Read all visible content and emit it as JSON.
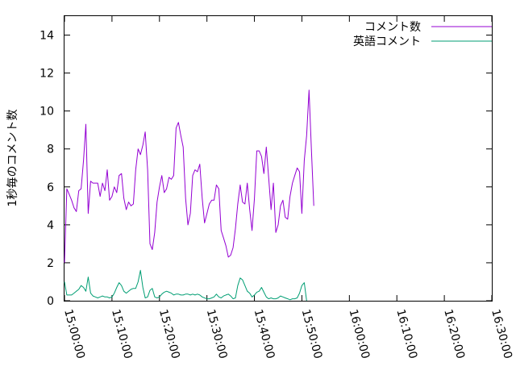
{
  "chart_data": {
    "type": "line",
    "ylabel": "1秒毎のコメント数",
    "ylim": [
      0,
      15
    ],
    "yticks": [
      0,
      2,
      4,
      6,
      8,
      10,
      12,
      14
    ],
    "xlim_minutes": [
      0,
      90
    ],
    "xticks": [
      {
        "m": 0,
        "label": "15:00:00"
      },
      {
        "m": 10,
        "label": "15:10:00"
      },
      {
        "m": 20,
        "label": "15:20:00"
      },
      {
        "m": 30,
        "label": "15:30:00"
      },
      {
        "m": 40,
        "label": "15:40:00"
      },
      {
        "m": 50,
        "label": "15:50:00"
      },
      {
        "m": 60,
        "label": "16:00:00"
      },
      {
        "m": 70,
        "label": "16:10:00"
      },
      {
        "m": 80,
        "label": "16:20:00"
      },
      {
        "m": 90,
        "label": "16:30:00"
      }
    ],
    "legend_position": "top-right",
    "series": [
      {
        "name": "コメント数",
        "color": "#9400d3",
        "points": [
          [
            0,
            2.0
          ],
          [
            0.5,
            5.9
          ],
          [
            1.0,
            5.6
          ],
          [
            1.5,
            5.3
          ],
          [
            2.0,
            4.9
          ],
          [
            2.5,
            4.7
          ],
          [
            3.0,
            5.8
          ],
          [
            3.5,
            5.9
          ],
          [
            4.0,
            7.4
          ],
          [
            4.5,
            9.3
          ],
          [
            5.0,
            4.6
          ],
          [
            5.5,
            6.3
          ],
          [
            6.0,
            6.2
          ],
          [
            6.5,
            6.2
          ],
          [
            7.0,
            6.2
          ],
          [
            7.5,
            5.5
          ],
          [
            8.0,
            6.2
          ],
          [
            8.5,
            5.8
          ],
          [
            9.0,
            6.9
          ],
          [
            9.5,
            5.3
          ],
          [
            10.0,
            5.5
          ],
          [
            10.5,
            6.0
          ],
          [
            11.0,
            5.7
          ],
          [
            11.5,
            6.6
          ],
          [
            12.0,
            6.7
          ],
          [
            12.5,
            5.4
          ],
          [
            13.0,
            4.8
          ],
          [
            13.5,
            5.2
          ],
          [
            14.0,
            5.0
          ],
          [
            14.5,
            5.1
          ],
          [
            15.0,
            6.9
          ],
          [
            15.5,
            8.0
          ],
          [
            16.0,
            7.7
          ],
          [
            16.5,
            8.2
          ],
          [
            17.0,
            8.9
          ],
          [
            17.5,
            6.9
          ],
          [
            18.0,
            3.0
          ],
          [
            18.5,
            2.7
          ],
          [
            19.0,
            3.6
          ],
          [
            19.5,
            5.2
          ],
          [
            20.0,
            6.0
          ],
          [
            20.5,
            6.6
          ],
          [
            21.0,
            5.7
          ],
          [
            21.5,
            5.9
          ],
          [
            22.0,
            6.5
          ],
          [
            22.5,
            6.4
          ],
          [
            23.0,
            6.6
          ],
          [
            23.5,
            9.1
          ],
          [
            24.0,
            9.4
          ],
          [
            24.5,
            8.7
          ],
          [
            25.0,
            8.1
          ],
          [
            25.5,
            5.4
          ],
          [
            26.0,
            4.0
          ],
          [
            26.5,
            4.6
          ],
          [
            27.0,
            6.6
          ],
          [
            27.5,
            6.9
          ],
          [
            28.0,
            6.8
          ],
          [
            28.5,
            7.2
          ],
          [
            29.0,
            5.4
          ],
          [
            29.5,
            4.1
          ],
          [
            30.0,
            4.6
          ],
          [
            30.5,
            5.1
          ],
          [
            31.0,
            5.3
          ],
          [
            31.5,
            5.3
          ],
          [
            32.0,
            6.1
          ],
          [
            32.5,
            5.9
          ],
          [
            33.0,
            3.7
          ],
          [
            33.5,
            3.3
          ],
          [
            34.0,
            2.9
          ],
          [
            34.5,
            2.3
          ],
          [
            35.0,
            2.4
          ],
          [
            35.5,
            2.8
          ],
          [
            36.0,
            3.8
          ],
          [
            36.5,
            5.1
          ],
          [
            37.0,
            6.1
          ],
          [
            37.5,
            5.2
          ],
          [
            38.0,
            5.1
          ],
          [
            38.5,
            6.2
          ],
          [
            39.0,
            4.8
          ],
          [
            39.5,
            3.7
          ],
          [
            40.0,
            5.4
          ],
          [
            40.5,
            7.9
          ],
          [
            41.0,
            7.9
          ],
          [
            41.5,
            7.6
          ],
          [
            42.0,
            6.7
          ],
          [
            42.5,
            8.1
          ],
          [
            43.0,
            6.5
          ],
          [
            43.5,
            4.8
          ],
          [
            44.0,
            6.2
          ],
          [
            44.5,
            3.6
          ],
          [
            45.0,
            4.0
          ],
          [
            45.5,
            5.0
          ],
          [
            46.0,
            5.3
          ],
          [
            46.5,
            4.4
          ],
          [
            47.0,
            4.3
          ],
          [
            47.5,
            5.5
          ],
          [
            48.0,
            6.2
          ],
          [
            48.5,
            6.6
          ],
          [
            49.0,
            7.0
          ],
          [
            49.5,
            6.8
          ],
          [
            50.0,
            4.6
          ],
          [
            50.5,
            7.4
          ],
          [
            51.0,
            8.7
          ],
          [
            51.5,
            11.1
          ],
          [
            52.0,
            8.0
          ],
          [
            52.5,
            5.0
          ]
        ]
      },
      {
        "name": "英語コメント",
        "color": "#009e73",
        "points": [
          [
            0,
            1.0
          ],
          [
            0.5,
            0.3
          ],
          [
            1.0,
            0.3
          ],
          [
            1.5,
            0.3
          ],
          [
            2.0,
            0.4
          ],
          [
            2.5,
            0.5
          ],
          [
            3.0,
            0.6
          ],
          [
            3.5,
            0.8
          ],
          [
            4.0,
            0.7
          ],
          [
            4.5,
            0.5
          ],
          [
            5.0,
            1.25
          ],
          [
            5.5,
            0.4
          ],
          [
            6.0,
            0.25
          ],
          [
            6.5,
            0.2
          ],
          [
            7.0,
            0.15
          ],
          [
            7.5,
            0.2
          ],
          [
            8.0,
            0.25
          ],
          [
            8.5,
            0.2
          ],
          [
            9.0,
            0.2
          ],
          [
            9.5,
            0.15
          ],
          [
            10.0,
            0.2
          ],
          [
            10.5,
            0.4
          ],
          [
            11.0,
            0.7
          ],
          [
            11.5,
            0.95
          ],
          [
            12.0,
            0.8
          ],
          [
            12.5,
            0.5
          ],
          [
            13.0,
            0.4
          ],
          [
            13.5,
            0.5
          ],
          [
            14.0,
            0.6
          ],
          [
            14.5,
            0.65
          ],
          [
            15.0,
            0.65
          ],
          [
            15.5,
            1.0
          ],
          [
            16.0,
            1.6
          ],
          [
            16.5,
            0.7
          ],
          [
            17.0,
            0.15
          ],
          [
            17.5,
            0.2
          ],
          [
            18.0,
            0.55
          ],
          [
            18.5,
            0.65
          ],
          [
            19.0,
            0.2
          ],
          [
            19.5,
            0.15
          ],
          [
            20.0,
            0.2
          ],
          [
            20.5,
            0.35
          ],
          [
            21.0,
            0.45
          ],
          [
            21.5,
            0.5
          ],
          [
            22.0,
            0.45
          ],
          [
            22.5,
            0.4
          ],
          [
            23.0,
            0.3
          ],
          [
            23.5,
            0.35
          ],
          [
            24.0,
            0.35
          ],
          [
            24.5,
            0.3
          ],
          [
            25.0,
            0.3
          ],
          [
            25.5,
            0.35
          ],
          [
            26.0,
            0.35
          ],
          [
            26.5,
            0.3
          ],
          [
            27.0,
            0.35
          ],
          [
            27.5,
            0.3
          ],
          [
            28.0,
            0.35
          ],
          [
            28.5,
            0.3
          ],
          [
            29.0,
            0.2
          ],
          [
            29.5,
            0.15
          ],
          [
            30.0,
            0.1
          ],
          [
            30.5,
            0.1
          ],
          [
            31.0,
            0.15
          ],
          [
            31.5,
            0.2
          ],
          [
            32.0,
            0.35
          ],
          [
            32.5,
            0.2
          ],
          [
            33.0,
            0.15
          ],
          [
            33.5,
            0.25
          ],
          [
            34.0,
            0.3
          ],
          [
            34.5,
            0.35
          ],
          [
            35.0,
            0.25
          ],
          [
            35.5,
            0.1
          ],
          [
            36.0,
            0.15
          ],
          [
            36.5,
            0.8
          ],
          [
            37.0,
            1.2
          ],
          [
            37.5,
            1.1
          ],
          [
            38.0,
            0.8
          ],
          [
            38.5,
            0.5
          ],
          [
            39.0,
            0.4
          ],
          [
            39.5,
            0.2
          ],
          [
            40.0,
            0.3
          ],
          [
            40.5,
            0.45
          ],
          [
            41.0,
            0.5
          ],
          [
            41.5,
            0.7
          ],
          [
            42.0,
            0.45
          ],
          [
            42.5,
            0.2
          ],
          [
            43.0,
            0.1
          ],
          [
            43.5,
            0.15
          ],
          [
            44.0,
            0.1
          ],
          [
            44.5,
            0.1
          ],
          [
            45.0,
            0.15
          ],
          [
            45.5,
            0.25
          ],
          [
            46.0,
            0.2
          ],
          [
            46.5,
            0.15
          ],
          [
            47.0,
            0.1
          ],
          [
            47.5,
            0.05
          ],
          [
            48.0,
            0.1
          ],
          [
            48.5,
            0.1
          ],
          [
            49.0,
            0.15
          ],
          [
            49.5,
            0.4
          ],
          [
            50.0,
            0.8
          ],
          [
            50.5,
            0.95
          ],
          [
            51.0,
            0.0
          ]
        ]
      }
    ]
  }
}
